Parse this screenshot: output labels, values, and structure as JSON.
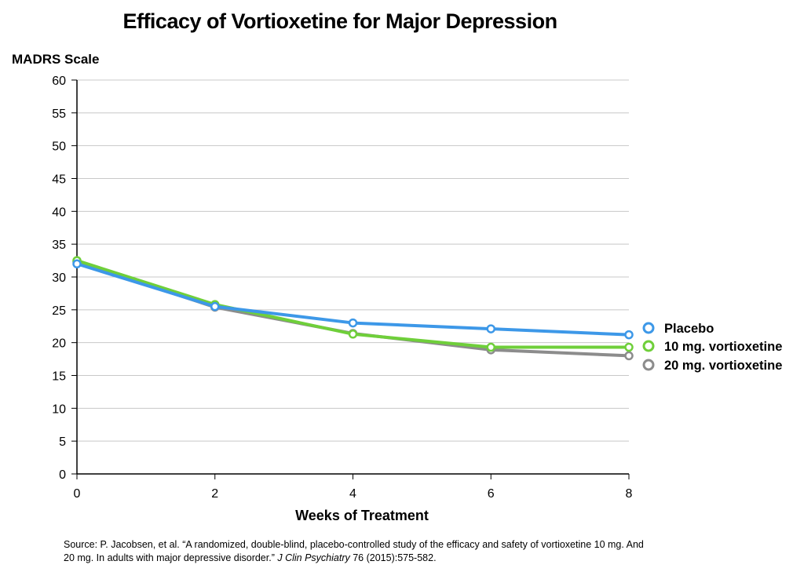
{
  "chart_data": {
    "type": "line",
    "title": "Efficacy of Vortioxetine for Major Depression",
    "ylabel": "MADRS Scale",
    "xlabel": "Weeks of Treatment",
    "x": [
      0,
      2,
      4,
      6,
      8
    ],
    "xticks": [
      "0",
      "2",
      "4",
      "6",
      "8"
    ],
    "yticks": [
      "0",
      "5",
      "10",
      "15",
      "20",
      "25",
      "30",
      "35",
      "40",
      "45",
      "50",
      "55",
      "60"
    ],
    "ylim": [
      0,
      60
    ],
    "xlim": [
      0,
      8
    ],
    "grid": "horizontal",
    "legend_position": "right",
    "series": [
      {
        "name": "Placebo",
        "color": "#3d98e8",
        "values": [
          32.0,
          25.5,
          23.0,
          22.1,
          21.2
        ]
      },
      {
        "name": "10 mg. vortioxetine",
        "color": "#6fcf3a",
        "values": [
          32.5,
          25.8,
          21.3,
          19.3,
          19.3
        ]
      },
      {
        "name": "20 mg. vortioxetine",
        "color": "#8c8c8c",
        "values": [
          32.3,
          25.4,
          21.4,
          18.9,
          18.0
        ]
      }
    ]
  },
  "source": {
    "text": "Source: P. Jacobsen, et al. “A randomized, double-blind, placebo-controlled study of the efficacy and safety of vortioxetine 10 mg. And 20 mg. In adults with major depressive disorder.” ",
    "journal": "J Clin Psychiatry",
    "citation": " 76 (2015):575-582."
  }
}
